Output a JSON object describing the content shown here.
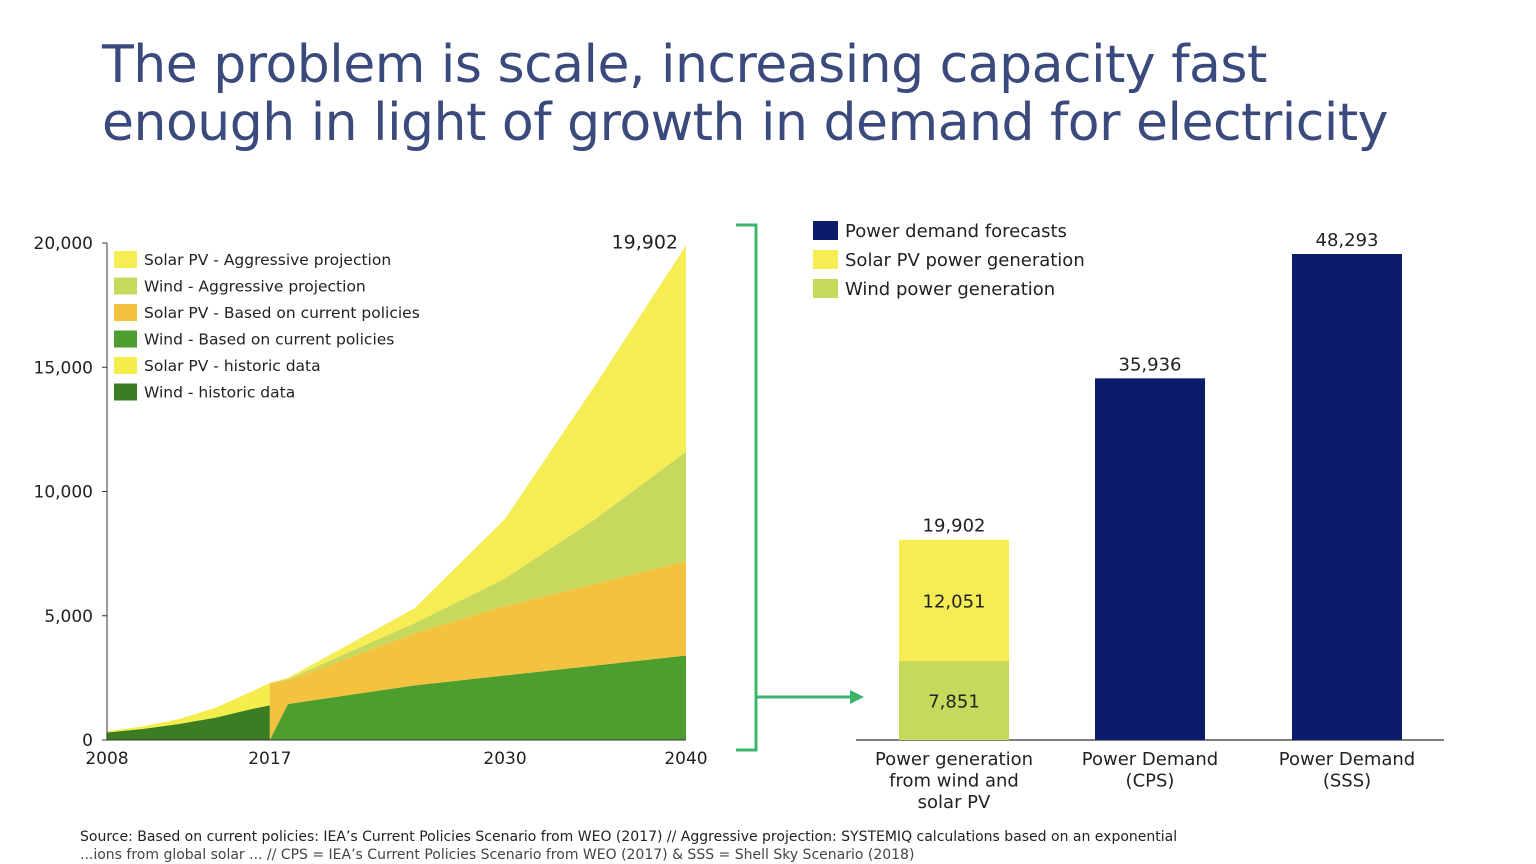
{
  "title": {
    "line1": "The problem is scale, increasing capacity fast",
    "line2": "enough in light of growth in demand for electricity"
  },
  "colors": {
    "title": "#3b4a7c",
    "solar_aggressive": "#f6ec54",
    "wind_aggressive": "#c6d95c",
    "solar_current": "#f3c33f",
    "wind_current": "#4e9e2f",
    "solar_historic": "#f4ee4c",
    "wind_historic": "#3c7d24",
    "navy": "#0c1c6b",
    "bracket": "#3bb46c"
  },
  "chart_data": [
    {
      "type": "area",
      "title": "",
      "xlabel": "",
      "ylabel": "",
      "xlim": [
        2008,
        2040
      ],
      "ylim": [
        0,
        20000
      ],
      "x_ticks": [
        "2008",
        "2017",
        "2030",
        "2040"
      ],
      "y_ticks": [
        "0",
        "5,000",
        "10,000",
        "15,000",
        "20,000"
      ],
      "legend": [
        {
          "key": "solar_aggressive",
          "label": "Solar PV - Aggressive projection"
        },
        {
          "key": "wind_aggressive",
          "label": "Wind - Aggressive projection"
        },
        {
          "key": "solar_current",
          "label": "Solar PV - Based on current policies"
        },
        {
          "key": "wind_current",
          "label": "Wind - Based on current policies"
        },
        {
          "key": "solar_historic",
          "label": "Solar PV - historic data"
        },
        {
          "key": "wind_historic",
          "label": "Wind - historic data"
        }
      ],
      "annotation": "19,902",
      "series_cumulative_top": {
        "historic": {
          "x": [
            2008,
            2010,
            2012,
            2014,
            2016,
            2017
          ],
          "wind": [
            300,
            450,
            650,
            900,
            1250,
            1400
          ],
          "wind_plus_solar": [
            350,
            550,
            850,
            1300,
            1950,
            2300
          ]
        },
        "projection": {
          "x": [
            2017,
            2018,
            2025,
            2030,
            2035,
            2040
          ],
          "wind_current": [
            0,
            1450,
            2200,
            2600,
            3000,
            3400
          ],
          "plus_solar_current": [
            2300,
            2400,
            4300,
            5400,
            6300,
            7200
          ],
          "plus_wind_aggressive": [
            2300,
            2450,
            4700,
            6500,
            8900,
            11600
          ],
          "plus_solar_aggressive": [
            2300,
            2500,
            5300,
            8900,
            14300,
            19902
          ]
        }
      }
    },
    {
      "type": "bar",
      "title": "",
      "ylim": [
        0,
        50000
      ],
      "categories": [
        "Power generation from wind and solar PV",
        "Power Demand (CPS)",
        "Power Demand (SSS)"
      ],
      "category_lines": [
        [
          "Power generation",
          "from wind and",
          "solar PV"
        ],
        [
          "Power Demand",
          "(CPS)"
        ],
        [
          "Power Demand",
          "(SSS)"
        ]
      ],
      "legend": [
        {
          "key": "navy",
          "label": "Power demand forecasts"
        },
        {
          "key": "solar_aggressive",
          "label": "Solar PV power generation"
        },
        {
          "key": "wind_aggressive",
          "label": "Wind power generation"
        }
      ],
      "series": [
        {
          "name": "Wind power generation",
          "values": [
            7851,
            0,
            0
          ],
          "labels": [
            "7,851",
            "",
            ""
          ]
        },
        {
          "name": "Solar PV power generation",
          "values": [
            12051,
            0,
            0
          ],
          "labels": [
            "12,051",
            "",
            ""
          ]
        },
        {
          "name": "Power demand forecasts",
          "values": [
            0,
            35936,
            48293
          ],
          "labels": [
            "",
            "",
            ""
          ]
        }
      ],
      "totals": [
        19902,
        35936,
        48293
      ],
      "total_labels": [
        "19,902",
        "35,936",
        "48,293"
      ]
    }
  ],
  "source": {
    "line1": "Source: Based on current policies: IEA’s Current Policies Scenario from WEO (2017) // Aggressive projection: SYSTEMIQ calculations based on an exponential",
    "line2_partial": "           ...ions from global solar ...  // CPS = IEA’s Current Policies Scenario from WEO (2017) & SSS = Shell Sky Scenario (2018)"
  }
}
